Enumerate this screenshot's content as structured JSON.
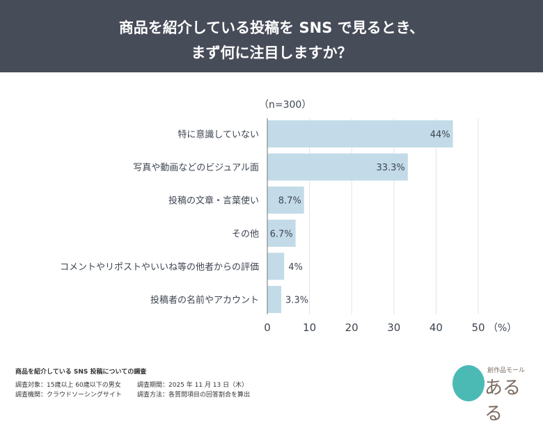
{
  "header": {
    "title_line1": "商品を紹介している投稿を SNS で見るとき、",
    "title_line2": "まず何に注目しますか？"
  },
  "chart_data": {
    "type": "bar",
    "orientation": "horizontal",
    "sample_note": "（n=300）",
    "categories": [
      "特に意識していない",
      "写真や動画などのビジュアル面",
      "投稿の文章・言葉使い",
      "その他",
      "コメントやリポストやいいね等の他者からの評価",
      "投稿者の名前やアカウント"
    ],
    "values": [
      44,
      33.3,
      8.7,
      6.7,
      4,
      3.3
    ],
    "data_labels": [
      "44%",
      "33.3%",
      "8.7%",
      "6.7%",
      "4%",
      "3.3%"
    ],
    "xlim": [
      0,
      50
    ],
    "xticks": [
      "0",
      "10",
      "20",
      "30",
      "40",
      "50"
    ],
    "xunit": "（%）",
    "grid": true,
    "bar_color": "#c3dbe8"
  },
  "footer": {
    "survey_title": "商品を紹介している SNS 投稿についての調査",
    "target": "調査対象：15歳以上 60歳以下の男女",
    "period": "調査期間：2025 年 11 月 13 日（木）",
    "agency": "調査機関：クラウドソーシングサイト",
    "method": "調査方法：各質問項目の回答割合を算出"
  },
  "logo": {
    "text": "あるる",
    "subtext": "創作品モール"
  }
}
